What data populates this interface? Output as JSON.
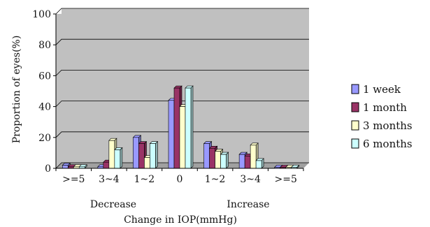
{
  "chart_data": {
    "type": "bar",
    "categories": [
      ">=5",
      "3~4",
      "1~2",
      "0",
      "1~2",
      "3~4",
      ">=5"
    ],
    "group_labels": [
      "Decrease",
      "Increase"
    ],
    "xlabel": "Change in IOP(mmHg)",
    "ylabel": "Proportion of eyes(%)",
    "ylim": [
      0,
      100
    ],
    "yticks": [
      0,
      20,
      40,
      60,
      80,
      100
    ],
    "grid": true,
    "legend_position": "right",
    "series": [
      {
        "name": "1 week",
        "color": "#9999ff",
        "values": [
          2,
          1,
          20,
          44,
          16,
          9,
          0
        ]
      },
      {
        "name": "1 month",
        "color": "#993366",
        "values": [
          1,
          4,
          16,
          52,
          13,
          8,
          0
        ]
      },
      {
        "name": "3 months",
        "color": "#ffffcc",
        "values": [
          1,
          18,
          7,
          40,
          11,
          15,
          0
        ]
      },
      {
        "name": "6 months",
        "color": "#ccffff",
        "values": [
          1,
          12,
          16,
          52,
          9,
          5,
          0
        ]
      }
    ]
  }
}
